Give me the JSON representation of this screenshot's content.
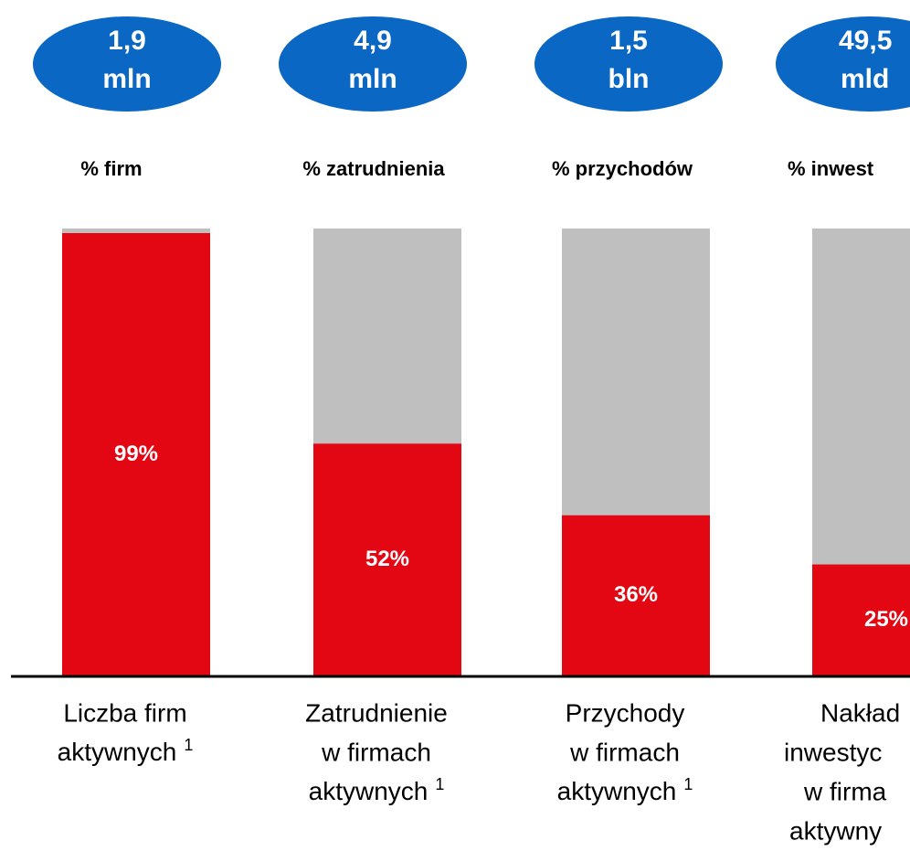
{
  "chart_data": {
    "type": "bar",
    "stacked": true,
    "bubbles": [
      [
        "1,9",
        "mln"
      ],
      [
        "4,9",
        "mln"
      ],
      [
        "1,5",
        "bln"
      ],
      [
        "49,5",
        "mld"
      ]
    ],
    "subtitles": [
      "% firm",
      "% zatrudnienia",
      "% przychodów",
      "% inwest"
    ],
    "categories": [
      [
        "Liczba firm",
        "aktywnych"
      ],
      [
        "Zatrudnienie",
        "w firmach",
        "aktywnych"
      ],
      [
        "Przychody",
        "w firmach",
        "aktywnych"
      ],
      [
        "Nakład",
        "inwestyc",
        "w firma",
        "aktywny"
      ]
    ],
    "category_notes": [
      "1",
      "1",
      "1",
      null
    ],
    "series": [
      {
        "color": "#e30613",
        "values": [
          99,
          52,
          36,
          25
        ],
        "value_labels": [
          "99%",
          "52%",
          "36%",
          "25%"
        ]
      },
      {
        "color": "#bfbfbf",
        "values": [
          1,
          48,
          64,
          75
        ]
      }
    ],
    "ylim": [
      0,
      100
    ],
    "bubble_color": "#0a67c4"
  }
}
